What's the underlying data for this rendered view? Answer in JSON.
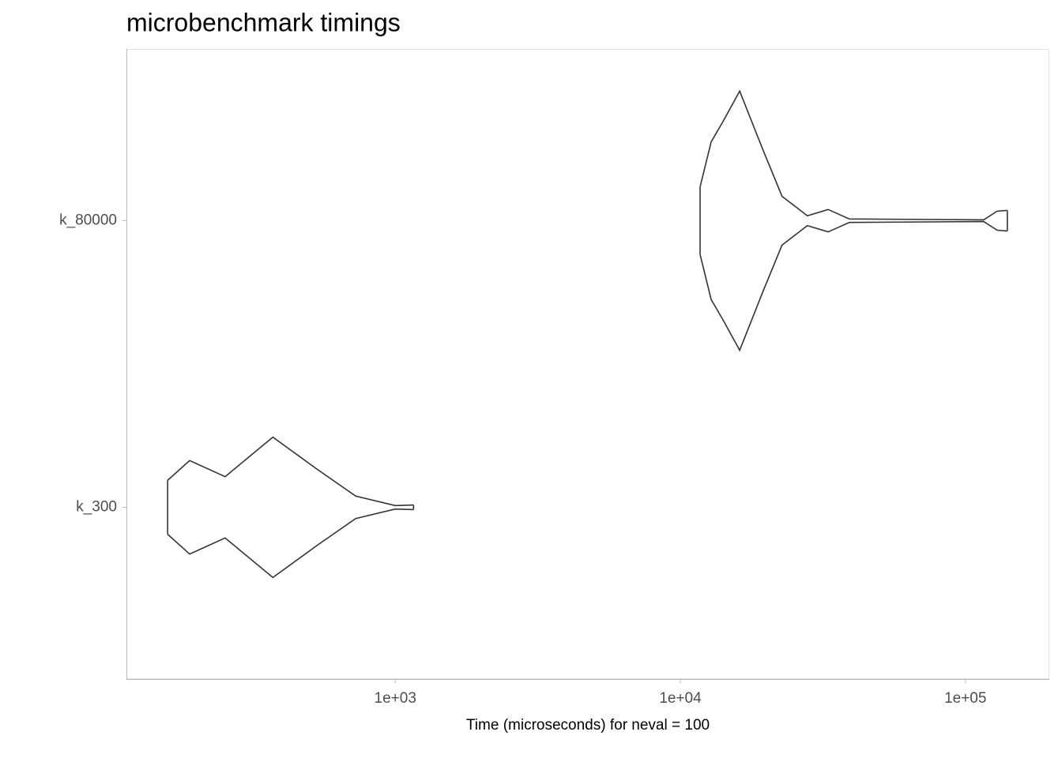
{
  "chart_data": {
    "type": "violin",
    "title": "microbenchmark timings",
    "x_label": "Time (microseconds) for neval = 100",
    "categories": [
      "k_300",
      "k_80000"
    ],
    "log_x": true,
    "xlim": [
      114,
      197000
    ],
    "xticks": [
      {
        "value": 1000,
        "label": "1e+03"
      },
      {
        "value": 10000,
        "label": "1e+04"
      },
      {
        "value": 100000,
        "label": "1e+05"
      }
    ],
    "color": "#333333",
    "series": [
      {
        "name": "k_300",
        "x": [
          159,
          190,
          253,
          372,
          528,
          726,
          1000,
          1159
        ],
        "values": [
          0.094,
          0.163,
          0.107,
          0.245,
          0.135,
          0.039,
          0.006,
          0.008
        ]
      },
      {
        "name": "k_80000",
        "x": [
          11730,
          12830,
          14130,
          16150,
          19420,
          22740,
          27900,
          32980,
          39200,
          115900,
          129100,
          140300
        ],
        "values": [
          0.118,
          0.275,
          0.347,
          0.452,
          0.251,
          0.085,
          0.017,
          0.039,
          0.006,
          0.003,
          0.033,
          0.036
        ]
      }
    ]
  }
}
